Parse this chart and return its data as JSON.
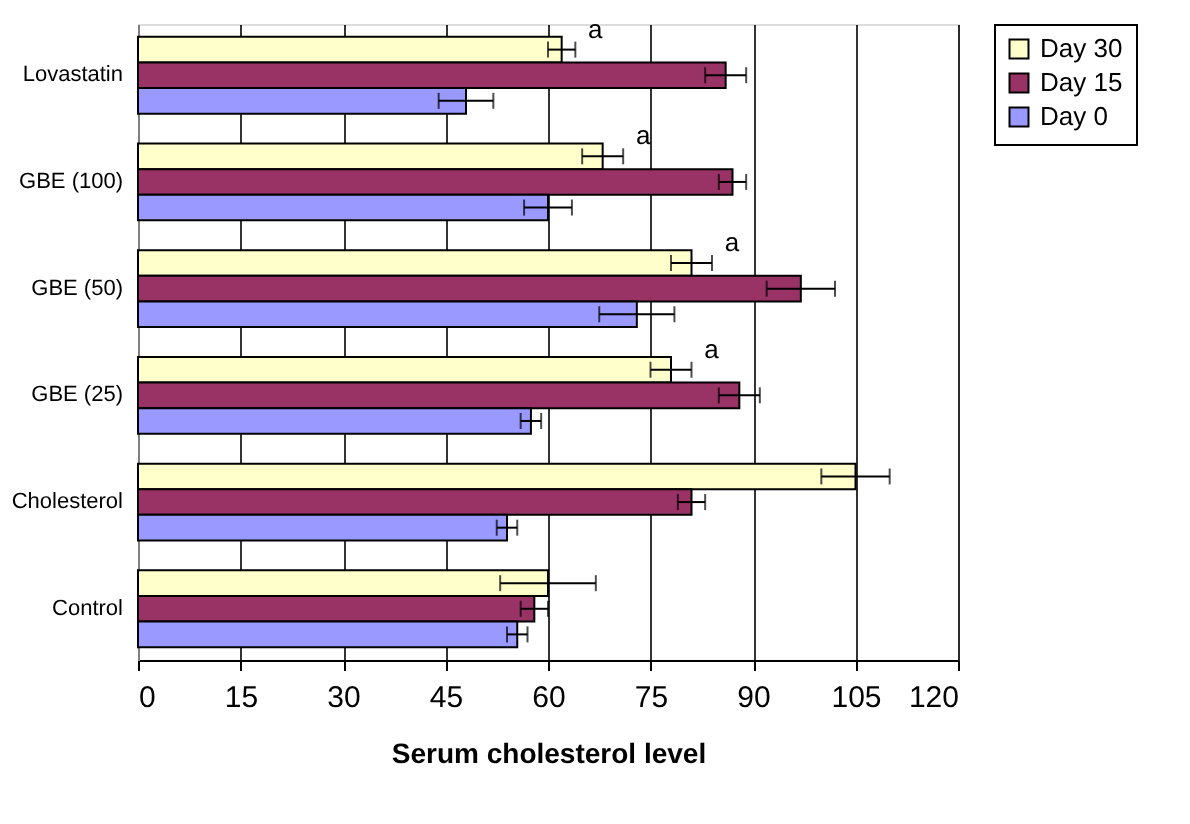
{
  "chart_data": {
    "type": "bar",
    "orientation": "horizontal",
    "xlabel": "Serum cholesterol level",
    "categories": [
      "Lovastatin",
      "GBE (100)",
      "GBE (50)",
      "GBE (25)",
      "Cholesterol",
      "Control"
    ],
    "series": [
      {
        "name": "Day 30",
        "color": "#ffffcc",
        "values": [
          62,
          68,
          81,
          78,
          105,
          60
        ],
        "errors": [
          2,
          3,
          3,
          3,
          5,
          7
        ]
      },
      {
        "name": "Day 15",
        "color": "#993366",
        "values": [
          86,
          87,
          97,
          88,
          81,
          58
        ],
        "errors": [
          3,
          2,
          5,
          3,
          2,
          2
        ]
      },
      {
        "name": "Day 0",
        "color": "#9999ff",
        "values": [
          48,
          60,
          73,
          57.5,
          54,
          55.5
        ],
        "errors": [
          4,
          3.5,
          5.5,
          1.5,
          1.5,
          1.5
        ]
      }
    ],
    "annotations": [
      "a",
      "a",
      "a",
      "a"
    ],
    "xlim": [
      0,
      120
    ],
    "xticks": [
      0,
      15,
      30,
      45,
      60,
      75,
      90,
      105,
      120
    ],
    "grid": "x",
    "legend": "right"
  }
}
